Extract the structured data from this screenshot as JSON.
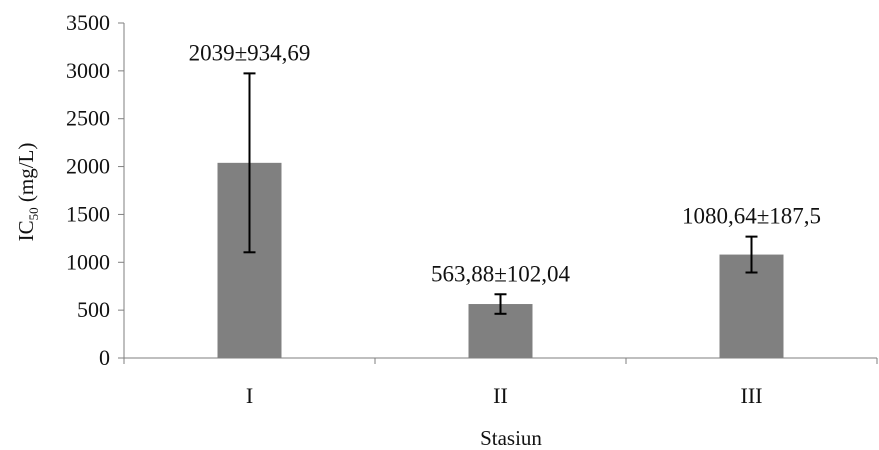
{
  "chart_data": {
    "type": "bar",
    "categories": [
      "I",
      "II",
      "III"
    ],
    "values": [
      2039,
      563.88,
      1080.64
    ],
    "errors": [
      934.69,
      102.04,
      187.5
    ],
    "data_labels": [
      "2039±934,69",
      "563,88±102,04",
      "1080,64±187,5"
    ],
    "xlabel": "Stasiun",
    "ylabel": {
      "main": "IC",
      "subscript": "50",
      "unit": " (mg/L)"
    },
    "ylim": [
      0,
      3500
    ],
    "y_ticks": [
      0,
      500,
      1000,
      1500,
      2000,
      2500,
      3000,
      3500
    ],
    "grid": false,
    "bar_color": "#808080",
    "error_bar_color": "#000000"
  }
}
